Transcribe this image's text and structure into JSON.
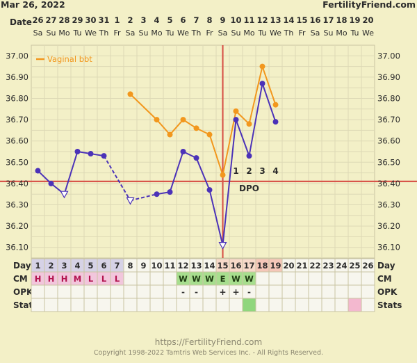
{
  "header": {
    "date_text": "Mar 26, 2022",
    "brand": "FertilityFriend.com",
    "date_row_label": "Date"
  },
  "chart_data": {
    "type": "line",
    "dates": [
      "26",
      "27",
      "28",
      "29",
      "30",
      "31",
      "1",
      "2",
      "3",
      "4",
      "5",
      "6",
      "7",
      "8",
      "9",
      "10",
      "11",
      "12",
      "13",
      "14",
      "15",
      "16",
      "17",
      "18",
      "19",
      "20"
    ],
    "weekdays": [
      "Sa",
      "Su",
      "Mo",
      "Tu",
      "We",
      "Th",
      "Fr",
      "Sa",
      "Su",
      "Mo",
      "Tu",
      "We",
      "Th",
      "Fr",
      "Sa",
      "Su",
      "Mo",
      "Tu",
      "We",
      "Th",
      "Fr",
      "Sa",
      "Su",
      "Mo",
      "Tu",
      "We"
    ],
    "cycle_days": [
      1,
      2,
      3,
      4,
      5,
      6,
      7,
      8,
      9,
      10,
      11,
      12,
      13,
      14,
      15,
      16,
      17,
      18,
      19,
      20,
      21,
      22,
      23,
      24,
      25,
      26
    ],
    "y_ticks": [
      "36.10",
      "36.20",
      "36.30",
      "36.40",
      "36.50",
      "36.60",
      "36.70",
      "36.80",
      "36.90",
      "37.00"
    ],
    "ylim": [
      36.05,
      37.05
    ],
    "series": [
      {
        "name": "",
        "color": "#4b32b8",
        "segments": [
          [
            [
              1,
              36.46
            ],
            [
              2,
              36.4
            ],
            [
              3,
              36.35
            ],
            [
              4,
              36.55
            ],
            [
              5,
              36.54
            ],
            [
              6,
              36.53
            ],
            [
              8,
              36.32
            ],
            [
              10,
              36.35
            ],
            [
              11,
              36.36
            ],
            [
              12,
              36.55
            ],
            [
              13,
              36.52
            ],
            [
              14,
              36.37
            ],
            [
              15,
              36.11
            ],
            [
              16,
              36.7
            ],
            [
              17,
              36.53
            ],
            [
              18,
              36.87
            ],
            [
              19,
              36.69
            ]
          ]
        ],
        "dashed_between": [
          [
            6,
            8
          ],
          [
            8,
            10
          ]
        ],
        "open_markers": [
          3,
          8,
          15
        ]
      },
      {
        "name": "Vaginal bbt",
        "color": "#f2971d",
        "segments": [
          [
            [
              8,
              36.82
            ],
            [
              10,
              36.7
            ],
            [
              11,
              36.63
            ],
            [
              12,
              36.7
            ],
            [
              13,
              36.66
            ],
            [
              14,
              36.63
            ],
            [
              15,
              36.44
            ],
            [
              16,
              36.74
            ],
            [
              17,
              36.68
            ],
            [
              18,
              36.95
            ],
            [
              19,
              36.77
            ]
          ]
        ]
      }
    ],
    "coverline": 36.41,
    "ovulation_day": 15,
    "dpo_labels": [
      {
        "day": 16,
        "text": "1"
      },
      {
        "day": 17,
        "text": "2"
      },
      {
        "day": 18,
        "text": "3"
      },
      {
        "day": 19,
        "text": "4"
      }
    ],
    "dpo_text": "DPO",
    "legend_placement": "top-left"
  },
  "rows": {
    "day_label": "Day",
    "cm_label": "CM",
    "opk_label": "OPK",
    "stats_label": "Stats",
    "cm": {
      "1": "H",
      "2": "H",
      "3": "H",
      "4": "M",
      "5": "L",
      "6": "L",
      "7": "L",
      "12": "W",
      "13": "W",
      "14": "W",
      "15": "E",
      "16": "W",
      "17": "W"
    },
    "opk": {
      "12": "-",
      "13": "-",
      "15": "+",
      "16": "+",
      "17": "-"
    },
    "stats_marked": [
      17,
      25
    ],
    "colors": {
      "cm_pink": "#f2c6dc",
      "fertile_green": "#a7de8e",
      "stat_green": "#8fd67d",
      "stat_pink": "#f3b8cf",
      "past_day": "#d6d2e6",
      "ovu_day": "#f5c7b9",
      "luteal_day": "#f7d9c9"
    }
  },
  "footer": {
    "url": "https://FertilityFriend.com",
    "copyright": "Copyright 1998-2022 Tamtris Web Services Inc. - All Rights Reserved."
  }
}
